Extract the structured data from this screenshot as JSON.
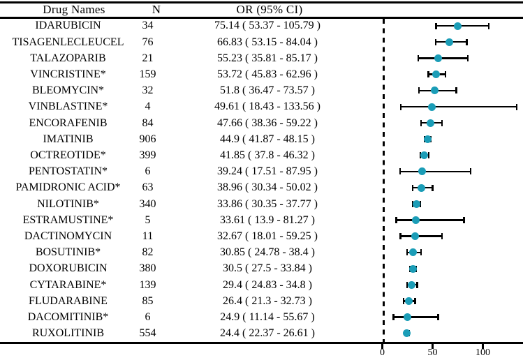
{
  "colors": {
    "marker": "#1B9DB7",
    "line": "#000000",
    "background": "#ffffff",
    "text": "#000000"
  },
  "table": {
    "headers": {
      "drug": "Drug Names",
      "n": "N",
      "or": "OR (95% CI)"
    },
    "rows": [
      {
        "drug": "IDARUBICIN",
        "n": "34",
        "or_text": "75.14 ( 53.37 - 105.79 )"
      },
      {
        "drug": "TISAGENLECLEUCEL",
        "n": "76",
        "or_text": "66.83 ( 53.15 - 84.04 )"
      },
      {
        "drug": "TALAZOPARIB",
        "n": "21",
        "or_text": "55.23 ( 35.81 - 85.17 )"
      },
      {
        "drug": "VINCRISTINE*",
        "n": "159",
        "or_text": "53.72 ( 45.83 - 62.96 )"
      },
      {
        "drug": "BLEOMYCIN*",
        "n": "32",
        "or_text": "51.8 ( 36.47 - 73.57 )"
      },
      {
        "drug": "VINBLASTINE*",
        "n": "4",
        "or_text": "49.61 ( 18.43 - 133.56 )"
      },
      {
        "drug": "ENCORAFENIB",
        "n": "84",
        "or_text": "47.66 ( 38.36 - 59.22 )"
      },
      {
        "drug": "IMATINIB",
        "n": "906",
        "or_text": "44.9 ( 41.87 - 48.15 )"
      },
      {
        "drug": "OCTREOTIDE*",
        "n": "399",
        "or_text": "41.85 ( 37.8 - 46.32 )"
      },
      {
        "drug": "PENTOSTATIN*",
        "n": "6",
        "or_text": "39.24 ( 17.51 - 87.95 )"
      },
      {
        "drug": "PAMIDRONIC ACID*",
        "n": "63",
        "or_text": "38.96 ( 30.34 - 50.02 )"
      },
      {
        "drug": "NILOTINIB*",
        "n": "340",
        "or_text": "33.86 ( 30.35 - 37.77 )"
      },
      {
        "drug": "ESTRAMUSTINE*",
        "n": "5",
        "or_text": "33.61 ( 13.9 - 81.27 )"
      },
      {
        "drug": "DACTINOMYCIN",
        "n": "11",
        "or_text": "32.67 ( 18.01 - 59.25 )"
      },
      {
        "drug": "BOSUTINIB*",
        "n": "82",
        "or_text": "30.85 ( 24.78 - 38.4 )"
      },
      {
        "drug": "DOXORUBICIN",
        "n": "380",
        "or_text": "30.5 ( 27.5 - 33.84 )"
      },
      {
        "drug": "CYTARABINE*",
        "n": "139",
        "or_text": "29.4 ( 24.83 - 34.8 )"
      },
      {
        "drug": "FLUDARABINE",
        "n": "85",
        "or_text": "26.4 ( 21.3 - 32.73 )"
      },
      {
        "drug": "DACOMITINIB*",
        "n": "6",
        "or_text": "24.9 ( 11.14 - 55.67 )"
      },
      {
        "drug": "RUXOLITINIB",
        "n": "554",
        "or_text": "24.4 ( 22.37 - 26.61 )"
      }
    ]
  },
  "chart_data": {
    "type": "scatter",
    "subtype": "forest_plot",
    "title": "",
    "xlabel": "",
    "ylabel": "",
    "categories": [
      "IDARUBICIN",
      "TISAGENLECLEUCEL",
      "TALAZOPARIB",
      "VINCRISTINE*",
      "BLEOMYCIN*",
      "VINBLASTINE*",
      "ENCORAFENIB",
      "IMATINIB",
      "OCTREOTIDE*",
      "PENTOSTATIN*",
      "PAMIDRONIC ACID*",
      "NILOTINIB*",
      "ESTRAMUSTINE*",
      "DACTINOMYCIN",
      "BOSUTINIB*",
      "DOXORUBICIN",
      "CYTARABINE*",
      "FLUDARABINE",
      "DACOMITINIB*",
      "RUXOLITINIB"
    ],
    "n": [
      34,
      76,
      21,
      159,
      32,
      4,
      84,
      906,
      399,
      6,
      63,
      340,
      5,
      11,
      82,
      380,
      139,
      85,
      6,
      554
    ],
    "or": [
      75.14,
      66.83,
      55.23,
      53.72,
      51.8,
      49.61,
      47.66,
      44.9,
      41.85,
      39.24,
      38.96,
      33.86,
      33.61,
      32.67,
      30.85,
      30.5,
      29.4,
      26.4,
      24.9,
      24.4
    ],
    "ci_low": [
      53.37,
      53.15,
      35.81,
      45.83,
      36.47,
      18.43,
      38.36,
      41.87,
      37.8,
      17.51,
      30.34,
      30.35,
      13.9,
      18.01,
      24.78,
      27.5,
      24.83,
      21.3,
      11.14,
      22.37
    ],
    "ci_high": [
      105.79,
      84.04,
      85.17,
      62.96,
      73.57,
      133.56,
      59.22,
      48.15,
      46.32,
      87.95,
      50.02,
      37.77,
      81.27,
      59.25,
      38.4,
      33.84,
      34.8,
      32.73,
      55.67,
      26.61
    ],
    "x_ticks": [
      "0",
      "50",
      "100"
    ],
    "x_tick_values": [
      0,
      50,
      100
    ],
    "xlim": [
      -29,
      140
    ],
    "reference_line_x": 0,
    "grid": "off",
    "legend": "none"
  }
}
